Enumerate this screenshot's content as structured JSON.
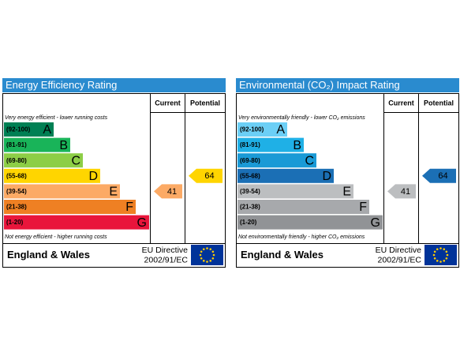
{
  "panels": [
    {
      "title": "Energy Efficiency Rating",
      "columns": [
        "Current",
        "Potential"
      ],
      "top_note": "Very energy efficient - lower running costs",
      "bottom_note": "Not energy efficient - higher running costs",
      "bands": [
        {
          "range": "(92-100)",
          "letter": "A",
          "color": "#008054"
        },
        {
          "range": "(81-91)",
          "letter": "B",
          "color": "#19b459"
        },
        {
          "range": "(69-80)",
          "letter": "C",
          "color": "#8dce46"
        },
        {
          "range": "(55-68)",
          "letter": "D",
          "color": "#ffd500"
        },
        {
          "range": "(39-54)",
          "letter": "E",
          "color": "#fcaa65"
        },
        {
          "range": "(21-38)",
          "letter": "F",
          "color": "#ef8023"
        },
        {
          "range": "(1-20)",
          "letter": "G",
          "color": "#e9153b"
        }
      ],
      "current": 41,
      "potential": 64,
      "footer": {
        "region": "England & Wales",
        "directive": "EU Directive",
        "code": "2002/91/EC"
      }
    },
    {
      "title": "Environmental (CO₂) Impact Rating",
      "columns": [
        "Current",
        "Potential"
      ],
      "top_note": "Very environmentally friendly - lower CO₂ emissions",
      "bottom_note": "Not environmentally friendly - higher CO₂ emissions",
      "bands": [
        {
          "range": "(92-100)",
          "letter": "A",
          "color": "#6ccff6"
        },
        {
          "range": "(81-91)",
          "letter": "B",
          "color": "#1fb0e6"
        },
        {
          "range": "(69-80)",
          "letter": "C",
          "color": "#1a9ad6"
        },
        {
          "range": "(55-68)",
          "letter": "D",
          "color": "#1b6fb5"
        },
        {
          "range": "(39-54)",
          "letter": "E",
          "color": "#bcbec0"
        },
        {
          "range": "(21-38)",
          "letter": "F",
          "color": "#a7a9ac"
        },
        {
          "range": "(1-20)",
          "letter": "G",
          "color": "#919396"
        }
      ],
      "current": 41,
      "potential": 64,
      "footer": {
        "region": "England & Wales",
        "directive": "EU Directive",
        "code": "2002/91/EC"
      }
    }
  ]
}
